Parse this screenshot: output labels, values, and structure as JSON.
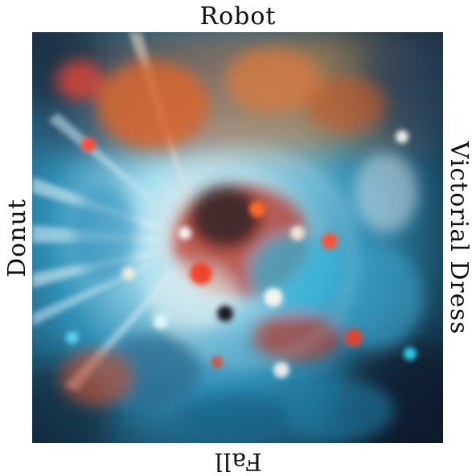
{
  "labels": {
    "top": "Robot",
    "bottom": "Fall",
    "left": "Donut",
    "right": "Victorial Dress"
  },
  "image": {
    "description_icon": "abstract-collage-image",
    "palette": {
      "background": "#ffffff",
      "text": "#111111",
      "cyan": "#3cc6e8",
      "deep_blue": "#17364f",
      "orange": "#e9642a",
      "red": "#c42a1f",
      "cream": "#f3e7d1",
      "navy": "#0f1d2e"
    }
  }
}
